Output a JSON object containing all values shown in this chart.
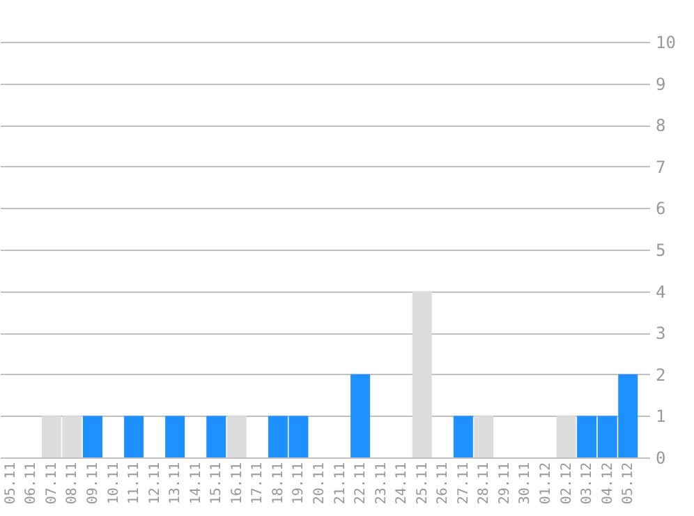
{
  "chart_data": {
    "type": "bar",
    "categories": [
      "05.11",
      "06.11",
      "07.11",
      "08.11",
      "09.11",
      "10.11",
      "11.11",
      "12.11",
      "13.11",
      "14.11",
      "15.11",
      "16.11",
      "17.11",
      "18.11",
      "19.11",
      "20.11",
      "21.11",
      "22.11",
      "23.11",
      "24.11",
      "25.11",
      "26.11",
      "27.11",
      "28.11",
      "29.11",
      "30.11",
      "01.12",
      "02.12",
      "03.12",
      "04.12",
      "05.12"
    ],
    "values": [
      0,
      0,
      1,
      1,
      1,
      0,
      1,
      0,
      1,
      0,
      1,
      1,
      0,
      1,
      1,
      0,
      0,
      2,
      0,
      0,
      4,
      0,
      1,
      1,
      0,
      0,
      0,
      1,
      1,
      1,
      2
    ],
    "colors": [
      "#dddddd",
      "#dddddd",
      "#dddddd",
      "#dddddd",
      "#1e90ff",
      "#dddddd",
      "#1e90ff",
      "#dddddd",
      "#1e90ff",
      "#dddddd",
      "#1e90ff",
      "#dddddd",
      "#dddddd",
      "#1e90ff",
      "#1e90ff",
      "#dddddd",
      "#dddddd",
      "#1e90ff",
      "#dddddd",
      "#dddddd",
      "#dddddd",
      "#dddddd",
      "#1e90ff",
      "#dddddd",
      "#dddddd",
      "#dddddd",
      "#dddddd",
      "#dddddd",
      "#1e90ff",
      "#1e90ff",
      "#1e90ff"
    ],
    "ylim": [
      0,
      10
    ],
    "yticks": [
      0,
      1,
      2,
      3,
      4,
      5,
      6,
      7,
      8,
      9,
      10
    ],
    "grid": "y"
  }
}
